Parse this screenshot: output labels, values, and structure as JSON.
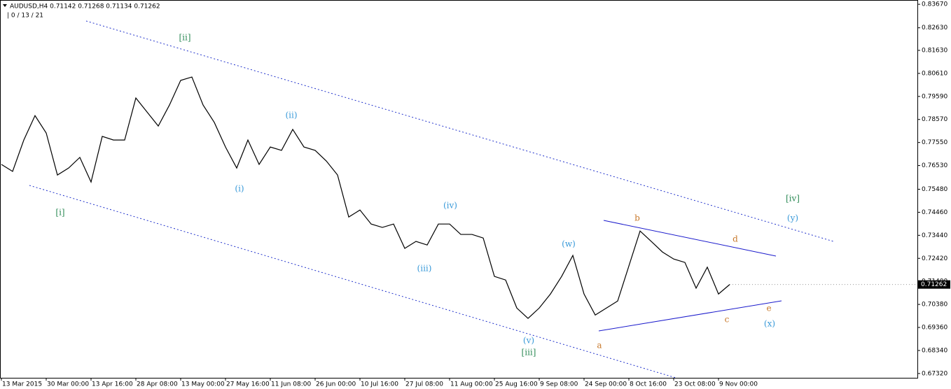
{
  "chart_data": {
    "type": "line",
    "title": "AUDUSD,H4  0.71142 0.71268 0.71134 0.71262",
    "subtitle": "| 0 / 13 / 21",
    "categories": [
      "13 Mar 2015",
      null,
      null,
      null,
      "30 Mar 00:00",
      null,
      null,
      null,
      "13 Apr 16:00",
      null,
      null,
      null,
      "28 Apr 08:00",
      null,
      null,
      null,
      "13 May 00:00",
      null,
      null,
      null,
      "27 May 16:00",
      null,
      null,
      null,
      "11 Jun 08:00",
      null,
      null,
      null,
      "26 Jun 00:00",
      null,
      null,
      null,
      "10 Jul 16:00",
      null,
      null,
      null,
      "27 Jul 08:00",
      null,
      null,
      null,
      "11 Aug 00:00",
      null,
      null,
      null,
      "25 Aug 16:00",
      null,
      null,
      null,
      "9 Sep 08:00",
      null,
      null,
      null,
      "24 Sep 00:00",
      null,
      null,
      null,
      "8 Oct 16:00",
      null,
      null,
      null,
      "23 Oct 08:00",
      null,
      null,
      null,
      "9 Nov 00:00",
      null
    ],
    "series": [
      {
        "name": "AUDUSD,H4",
        "color": "#000000",
        "values": [
          0.7658,
          0.7627,
          0.7766,
          0.7874,
          0.7797,
          0.7611,
          0.7642,
          0.7689,
          0.758,
          0.7782,
          0.7766,
          0.7766,
          0.7952,
          0.789,
          0.7828,
          0.7921,
          0.803,
          0.8045,
          0.7921,
          0.7844,
          0.7735,
          0.7642,
          0.7766,
          0.7658,
          0.7735,
          0.772,
          0.7813,
          0.7735,
          0.772,
          0.7673,
          0.7611,
          0.7425,
          0.7456,
          0.7394,
          0.7379,
          0.7394,
          0.7286,
          0.7317,
          0.7301,
          0.7394,
          0.7394,
          0.7348,
          0.7348,
          0.7332,
          0.7162,
          0.7146,
          0.7022,
          0.6976,
          0.7022,
          0.7084,
          0.7162,
          0.7255,
          0.7084,
          0.6991,
          0.7022,
          0.7053,
          0.7208,
          0.7363,
          0.7317,
          0.727,
          0.7239,
          0.7224,
          0.711,
          0.7203,
          0.7084,
          0.71262
        ]
      }
    ],
    "ylim": [
      0.6713,
      0.8386
    ],
    "yticks": [
      {
        "value": 0.8367,
        "label": "0.83670"
      },
      {
        "value": 0.8263,
        "label": "0.82630"
      },
      {
        "value": 0.8163,
        "label": "0.81630"
      },
      {
        "value": 0.8061,
        "label": "0.80610"
      },
      {
        "value": 0.7959,
        "label": "0.79590"
      },
      {
        "value": 0.7857,
        "label": "0.78570"
      },
      {
        "value": 0.7755,
        "label": "0.77550"
      },
      {
        "value": 0.7653,
        "label": "0.76530"
      },
      {
        "value": 0.7548,
        "label": "0.75480"
      },
      {
        "value": 0.7446,
        "label": "0.74460"
      },
      {
        "value": 0.7344,
        "label": "0.73440"
      },
      {
        "value": 0.7242,
        "label": "0.72420"
      },
      {
        "value": 0.714,
        "label": "0.71400"
      },
      {
        "value": 0.7038,
        "label": "0.70380"
      },
      {
        "value": 0.6936,
        "label": "0.69360"
      },
      {
        "value": 0.6834,
        "label": "0.68340"
      },
      {
        "value": 0.6732,
        "label": "0.67320"
      }
    ],
    "grid": false,
    "annotations": [
      {
        "text": "[ii]",
        "color": "#2e8b57"
      },
      {
        "text": "[i]",
        "color": "#2e8b57"
      },
      {
        "text": "(ii)",
        "color": "#3a9ad9"
      },
      {
        "text": "(i)",
        "color": "#3a9ad9"
      },
      {
        "text": "(iii)",
        "color": "#3a9ad9"
      },
      {
        "text": "(iv)",
        "color": "#3a9ad9"
      },
      {
        "text": "(v)",
        "color": "#3a9ad9"
      },
      {
        "text": "[iii]",
        "color": "#2e8b57"
      },
      {
        "text": "(w)",
        "color": "#3a9ad9"
      },
      {
        "text": "b",
        "color": "#c8782a"
      },
      {
        "text": "d",
        "color": "#c8782a"
      },
      {
        "text": "[iv]",
        "color": "#2e8b57"
      },
      {
        "text": "(y)",
        "color": "#3a9ad9"
      },
      {
        "text": "a",
        "color": "#c8782a"
      },
      {
        "text": "c",
        "color": "#c8782a"
      },
      {
        "text": "e",
        "color": "#c8782a"
      },
      {
        "text": "(x)",
        "color": "#3a9ad9"
      }
    ]
  }
}
